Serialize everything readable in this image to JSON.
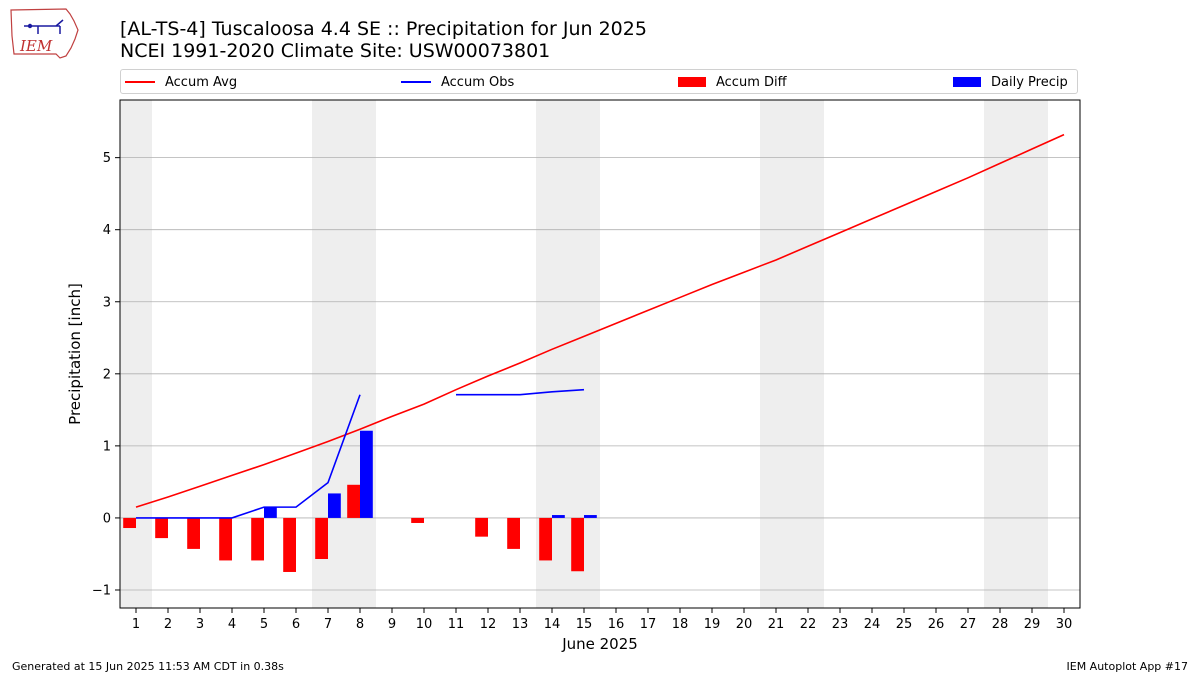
{
  "header": {
    "title_line1": "[AL-TS-4] Tuscaloosa 4.4 SE :: Precipitation for Jun 2025",
    "title_line2": "NCEI 1991-2020 Climate Site: USW00073801"
  },
  "logo": {
    "text": "IEM"
  },
  "footer": {
    "generated": "Generated at 15 Jun 2025 11:53 AM CDT in 0.38s",
    "app": "IEM Autoplot App #17"
  },
  "colors": {
    "avg": "#ff0000",
    "obs": "#0000ff",
    "diff": "#ff0000",
    "daily": "#0000ff",
    "weekend": "#eeeeee",
    "grid": "#b0b0b0"
  },
  "chart_data": {
    "type": "bar",
    "xlabel": "June 2025",
    "ylabel": "Precipitation [inch]",
    "xlim": [
      0.5,
      30.5
    ],
    "ylim": [
      -1.25,
      5.8
    ],
    "yticks": [
      -1,
      0,
      1,
      2,
      3,
      4,
      5
    ],
    "xticks": [
      1,
      2,
      3,
      4,
      5,
      6,
      7,
      8,
      9,
      10,
      11,
      12,
      13,
      14,
      15,
      16,
      17,
      18,
      19,
      20,
      21,
      22,
      23,
      24,
      25,
      26,
      27,
      28,
      29,
      30
    ],
    "grid": "horizontal",
    "legend_position": "top",
    "weekend_days": [
      1,
      7,
      8,
      14,
      15,
      21,
      22,
      28,
      29
    ],
    "series": [
      {
        "name": "Accum Avg",
        "kind": "line",
        "x": [
          1,
          2,
          3,
          4,
          5,
          6,
          7,
          8,
          9,
          10,
          11,
          12,
          13,
          14,
          15,
          16,
          17,
          18,
          19,
          20,
          21,
          22,
          23,
          24,
          25,
          26,
          27,
          28,
          29,
          30
        ],
        "values": [
          0.15,
          0.29,
          0.44,
          0.59,
          0.74,
          0.9,
          1.06,
          1.23,
          1.41,
          1.58,
          1.78,
          1.97,
          2.15,
          2.34,
          2.52,
          2.7,
          2.88,
          3.06,
          3.24,
          3.41,
          3.58,
          3.77,
          3.96,
          4.15,
          4.34,
          4.53,
          4.72,
          4.92,
          5.12,
          5.32
        ]
      },
      {
        "name": "Accum Obs",
        "kind": "line",
        "x": [
          1,
          2,
          3,
          4,
          5,
          6,
          7,
          8,
          11,
          12,
          13,
          14,
          15
        ],
        "values": [
          0.0,
          0.0,
          0.0,
          0.0,
          0.15,
          0.15,
          0.49,
          1.71,
          1.71,
          1.71,
          1.71,
          1.75,
          1.78
        ],
        "segments": [
          [
            1,
            2,
            3,
            4,
            5,
            6,
            7,
            8
          ],
          [
            11,
            12,
            13,
            14,
            15
          ]
        ]
      },
      {
        "name": "Accum Diff",
        "kind": "bar",
        "x": [
          1,
          2,
          3,
          4,
          5,
          6,
          7,
          8,
          10,
          12,
          13,
          14,
          15
        ],
        "values": [
          -0.14,
          -0.28,
          -0.43,
          -0.59,
          -0.59,
          -0.75,
          -0.57,
          0.46,
          -0.07,
          -0.26,
          -0.43,
          -0.59,
          -0.74
        ]
      },
      {
        "name": "Daily Precip",
        "kind": "bar",
        "x": [
          5,
          7,
          8,
          14,
          15
        ],
        "values": [
          0.15,
          0.34,
          1.21,
          0.04,
          0.04
        ]
      }
    ]
  }
}
